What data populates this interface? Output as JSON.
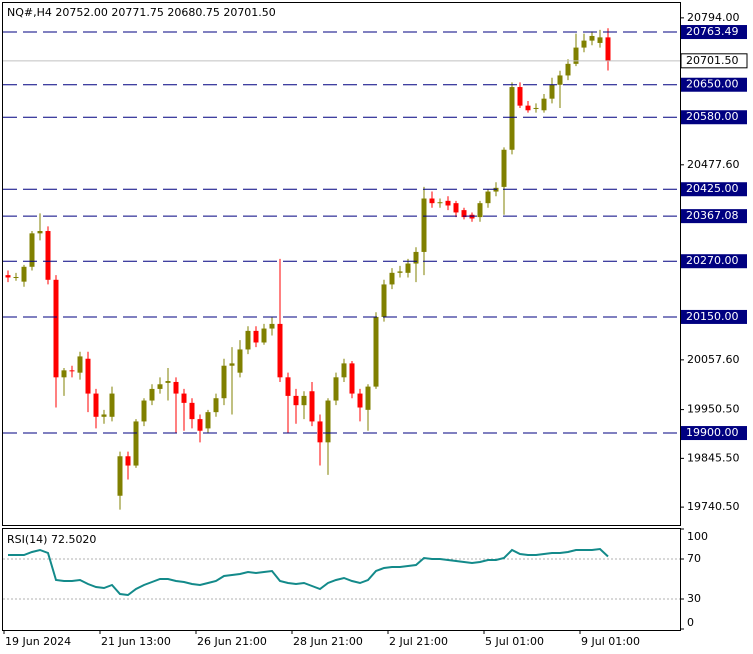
{
  "chart_data": {
    "type": "candlestick",
    "title": "NQ#,H4  20752.00 20771.75 20680.75 20701.50",
    "categories": [
      "19 Jun 2024",
      null,
      null,
      null,
      null,
      null,
      null,
      null,
      null,
      null,
      null,
      null,
      "21 Jun 13:00",
      null,
      null,
      null,
      null,
      null,
      null,
      null,
      null,
      null,
      null,
      null,
      "26 Jun 21:00",
      null,
      null,
      null,
      null,
      null,
      null,
      null,
      null,
      null,
      null,
      null,
      "28 Jun 21:00",
      null,
      null,
      null,
      null,
      null,
      null,
      null,
      null,
      null,
      null,
      null,
      "2 Jul 21:00",
      null,
      null,
      null,
      null,
      null,
      null,
      null,
      null,
      null,
      null,
      null,
      "5 Jul 01:00",
      null,
      null,
      null,
      null,
      null,
      null,
      null,
      null,
      null,
      null,
      null,
      "9 Jul 01:00",
      null,
      null,
      null
    ],
    "open": [
      20240,
      20235,
      20226,
      20258,
      20330,
      20335,
      20230,
      20020,
      20035,
      20030,
      20060,
      19985,
      19935,
      19935,
      19765,
      19850,
      19830,
      19925,
      19970,
      19995,
      20008,
      20010,
      19985,
      19965,
      19930,
      19910,
      19945,
      19975,
      20045,
      20030,
      20080,
      20120,
      20095,
      20125,
      20135,
      20020,
      19980,
      19960,
      19990,
      19925,
      19880,
      19970,
      20020,
      20050,
      19985,
      19950,
      20000,
      20150,
      20220,
      20245,
      20245,
      20265,
      20290,
      20405,
      20395,
      20400,
      20395,
      20380,
      20370,
      20365,
      20395,
      20420,
      20430,
      20510,
      20645,
      20605,
      20598,
      20595,
      20620,
      20650,
      20670,
      20695,
      20730,
      20745,
      20740,
      20752
    ],
    "high": [
      20250,
      20245,
      20262,
      20335,
      20373,
      20345,
      20240,
      20040,
      20045,
      20075,
      20075,
      19995,
      19950,
      20000,
      19860,
      19860,
      19930,
      19975,
      20005,
      20020,
      20040,
      20020,
      19995,
      19975,
      19940,
      19950,
      19985,
      20060,
      20085,
      20100,
      20130,
      20130,
      20135,
      20150,
      20275,
      20030,
      19995,
      19990,
      20010,
      19940,
      19975,
      20030,
      20060,
      20055,
      19995,
      20005,
      20160,
      20230,
      20255,
      20260,
      20275,
      20300,
      20430,
      20420,
      20405,
      20410,
      20400,
      20385,
      20375,
      20400,
      20425,
      20440,
      20515,
      20655,
      20655,
      20615,
      20610,
      20630,
      20665,
      20680,
      20705,
      20760,
      20760,
      20765,
      20768,
      20771.75
    ],
    "low": [
      20225,
      20228,
      20215,
      20250,
      20315,
      20220,
      19955,
      19980,
      20020,
      20015,
      19945,
      19910,
      19920,
      19925,
      19735,
      19800,
      19825,
      19915,
      19960,
      19985,
      19970,
      19900,
      19905,
      19910,
      19880,
      19900,
      19935,
      19960,
      19940,
      20020,
      20070,
      20085,
      20090,
      20110,
      20010,
      19900,
      19920,
      19930,
      19915,
      19830,
      19810,
      19960,
      20010,
      19975,
      19925,
      19905,
      19995,
      20140,
      20210,
      20235,
      20235,
      20225,
      20240,
      20385,
      20385,
      20380,
      20365,
      20360,
      20355,
      20355,
      20385,
      20410,
      20370,
      20500,
      20600,
      20590,
      20590,
      20590,
      20610,
      20600,
      20660,
      20690,
      20720,
      20735,
      20730,
      20680.75
    ],
    "close": [
      20235,
      20236,
      20258,
      20330,
      20335,
      20230,
      20020,
      20035,
      20033,
      20065,
      19985,
      19935,
      19940,
      19985,
      19850,
      19830,
      19925,
      19970,
      19995,
      20005,
      20012,
      19985,
      19965,
      19930,
      19905,
      19945,
      19975,
      20045,
      20050,
      20080,
      20120,
      20095,
      20125,
      20135,
      20020,
      19980,
      19960,
      19980,
      19925,
      19880,
      19970,
      20020,
      20050,
      19985,
      19955,
      20000,
      20150,
      20220,
      20245,
      20248,
      20265,
      20290,
      20405,
      20395,
      20397,
      20390,
      20375,
      20365,
      20362,
      20395,
      20420,
      20428,
      20510,
      20645,
      20605,
      20595,
      20600,
      20620,
      20650,
      20670,
      20695,
      20730,
      20745,
      20755,
      20752,
      20701.5
    ],
    "up_color": "#808000",
    "down_color": "#ff0000",
    "ylim": [
      19702,
      20826
    ],
    "yticks": [
      {
        "value": 20794,
        "label": "20794.00"
      },
      {
        "value": 20477.6,
        "label": "20477.60"
      },
      {
        "value": 20057.6,
        "label": "20057.60"
      },
      {
        "value": 19950.5,
        "label": "19950.50"
      },
      {
        "value": 19845.5,
        "label": "19845.50"
      },
      {
        "value": 19740.5,
        "label": "19740.50"
      }
    ],
    "levels": [
      {
        "value": 20763.49,
        "label": "20763.49"
      },
      {
        "value": 20650,
        "label": "20650.00"
      },
      {
        "value": 20580,
        "label": "20580.00"
      },
      {
        "value": 20425,
        "label": "20425.00"
      },
      {
        "value": 20367.08,
        "label": "20367.08"
      },
      {
        "value": 20270,
        "label": "20270.00"
      },
      {
        "value": 20150,
        "label": "20150.00"
      },
      {
        "value": 19900,
        "label": "19900.00"
      }
    ],
    "level_color": "#000080",
    "current_price": {
      "value": 20701.5,
      "label": "20701.50"
    },
    "indicator": {
      "title": "RSI(14) 72.5020",
      "color": "#138a8a",
      "values": [
        74,
        74,
        74,
        77,
        79,
        76,
        49,
        48,
        48,
        49,
        45,
        42,
        41,
        44,
        35,
        34,
        40,
        44,
        47,
        50,
        50,
        48,
        47,
        45,
        44,
        46,
        48,
        53,
        54,
        55,
        57,
        56,
        57,
        58,
        48,
        46,
        45,
        46,
        43,
        40,
        46,
        49,
        51,
        48,
        46,
        49,
        58,
        61,
        62,
        62,
        63,
        64,
        71,
        70,
        70,
        69,
        68,
        67,
        66,
        67,
        69,
        69,
        71,
        79,
        75,
        74,
        74,
        75,
        76,
        76,
        77,
        79,
        79,
        79,
        80,
        72.502
      ],
      "ylim": [
        0,
        100
      ],
      "yticks": [
        100,
        70,
        30,
        0
      ]
    }
  }
}
